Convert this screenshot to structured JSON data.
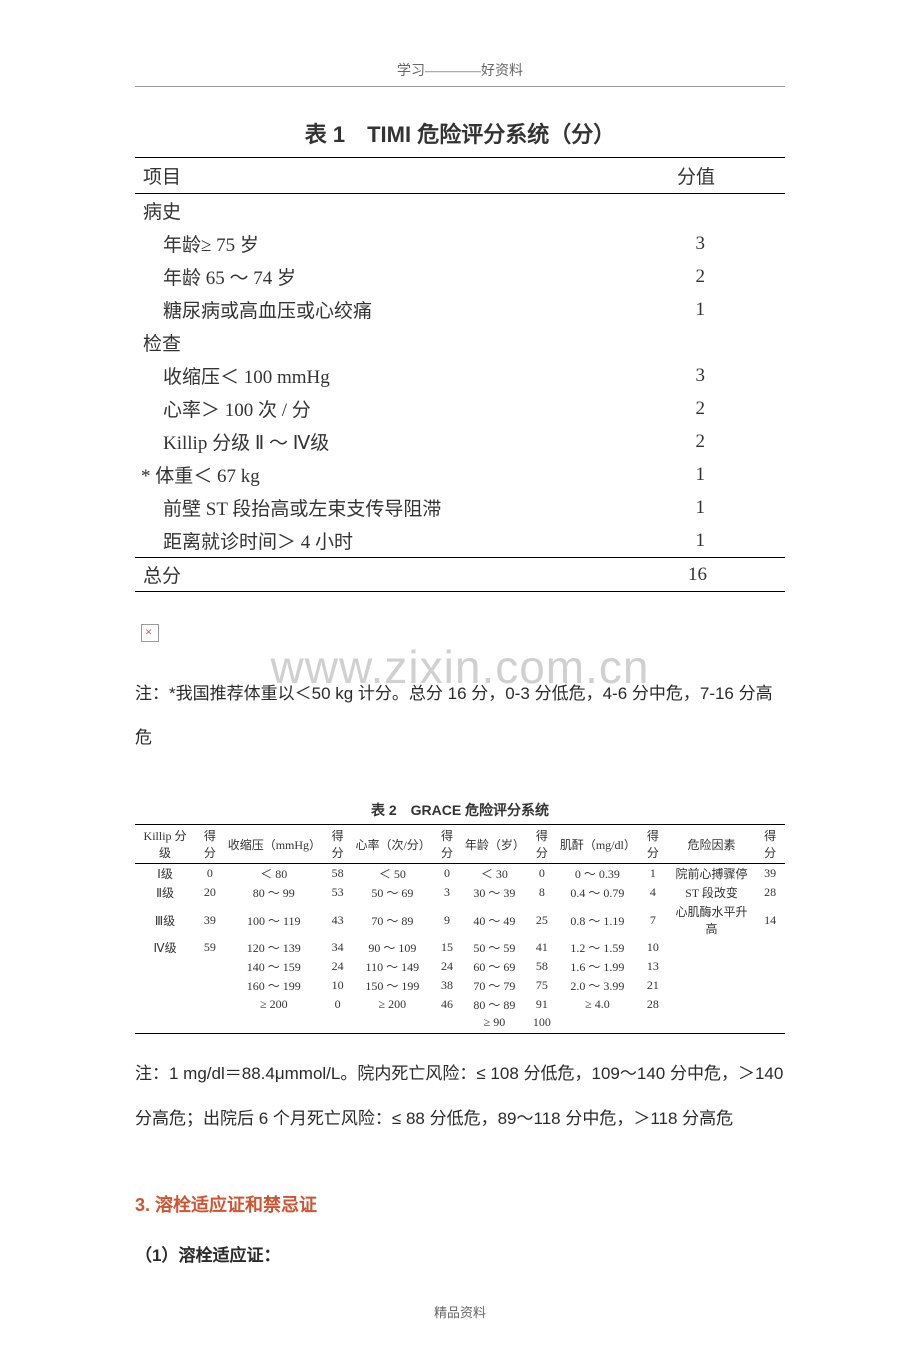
{
  "header": "学习————好资料",
  "footer": "精品资料",
  "watermark": "www.zixin.com.cn",
  "table1": {
    "title": "表 1　TIMI 危险评分系统（分）",
    "head_item": "项目",
    "head_score": "分值",
    "sections": [
      {
        "label": "病史",
        "rows": [
          {
            "item": "年龄≥ 75 岁",
            "score": "3"
          },
          {
            "item": "年龄 65 ～ 74 岁",
            "score": "2"
          },
          {
            "item": "糖尿病或高血压或心绞痛",
            "score": "1"
          }
        ]
      },
      {
        "label": "检查",
        "rows": [
          {
            "item": "收缩压＜ 100 mmHg",
            "score": "3"
          },
          {
            "item": "心率＞ 100 次 / 分",
            "score": "2"
          },
          {
            "item": "Killip 分级 Ⅱ ～ Ⅳ级",
            "score": "2"
          },
          {
            "item": "* 体重＜ 67 kg",
            "score": "1",
            "noindent": true
          },
          {
            "item": "前壁 ST 段抬高或左束支传导阻滞",
            "score": "1"
          },
          {
            "item": "距离就诊时间＞ 4 小时",
            "score": "1"
          }
        ]
      }
    ],
    "total_label": "总分",
    "total_score": "16"
  },
  "note1": "注：*我国推荐体重以＜50 kg 计分。总分 16 分，0-3 分低危，4-6 分中危，7-16 分高危",
  "table2": {
    "title": "表 2　GRACE 危险评分系统",
    "headers": [
      "Killip 分级",
      "得分",
      "收缩压（mmHg）",
      "得分",
      "心率（次/分）",
      "得分",
      "年龄（岁）",
      "得分",
      "肌酐（mg/dl）",
      "得分",
      "危险因素",
      "得分"
    ],
    "rows": [
      [
        "Ⅰ级",
        "0",
        "＜ 80",
        "58",
        "＜ 50",
        "0",
        "＜ 30",
        "0",
        "0 ～ 0.39",
        "1",
        "院前心搏骤停",
        "39"
      ],
      [
        "Ⅱ级",
        "20",
        "80 ～ 99",
        "53",
        "50 ～ 69",
        "3",
        "30 ～ 39",
        "8",
        "0.4 ～ 0.79",
        "4",
        "ST 段改变",
        "28"
      ],
      [
        "Ⅲ级",
        "39",
        "100 ～ 119",
        "43",
        "70 ～ 89",
        "9",
        "40 ～ 49",
        "25",
        "0.8 ～ 1.19",
        "7",
        "心肌酶水平升高",
        "14"
      ],
      [
        "Ⅳ级",
        "59",
        "120 ～ 139",
        "34",
        "90 ～ 109",
        "15",
        "50 ～ 59",
        "41",
        "1.2 ～ 1.59",
        "10",
        "",
        ""
      ],
      [
        "",
        "",
        "140 ～ 159",
        "24",
        "110 ～ 149",
        "24",
        "60 ～ 69",
        "58",
        "1.6 ～ 1.99",
        "13",
        "",
        ""
      ],
      [
        "",
        "",
        "160 ～ 199",
        "10",
        "150 ～ 199",
        "38",
        "70 ～ 79",
        "75",
        "2.0 ～ 3.99",
        "21",
        "",
        ""
      ],
      [
        "",
        "",
        "≥ 200",
        "0",
        "≥ 200",
        "46",
        "80 ～ 89",
        "91",
        "≥ 4.0",
        "28",
        "",
        ""
      ],
      [
        "",
        "",
        "",
        "",
        "",
        "",
        "≥ 90",
        "100",
        "",
        "",
        "",
        ""
      ]
    ]
  },
  "note2": "注：1 mg/dl＝88.4μmmol/L。院内死亡风险：≤ 108 分低危，109～140 分中危，＞140 分高危；出院后 6 个月死亡风险：≤ 88 分低危，89～118 分中危，＞118 分高危",
  "section_title": "3. 溶栓适应证和禁忌证",
  "sub_title": "（1）溶栓适应证："
}
